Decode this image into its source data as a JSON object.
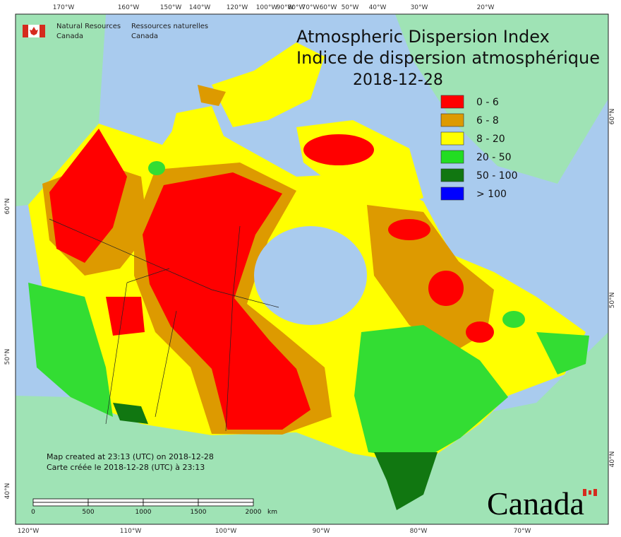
{
  "agency": {
    "en_line1": "Natural Resources",
    "en_line2": "Canada",
    "fr_line1": "Ressources naturelles",
    "fr_line2": "Canada"
  },
  "title": {
    "en": "Atmospheric Dispersion Index",
    "fr": "Indice de dispersion atmosphérique",
    "date": "2018-12-28"
  },
  "legend": [
    {
      "label": "0 - 6",
      "color": "#ff0000"
    },
    {
      "label": "6 - 8",
      "color": "#dd9a00"
    },
    {
      "label": "8 - 20",
      "color": "#ffff00"
    },
    {
      "label": "20 - 50",
      "color": "#22dd22"
    },
    {
      "label": "50 - 100",
      "color": "#117711"
    },
    {
      "label": "> 100",
      "color": "#0000ff"
    }
  ],
  "graticule": {
    "top": [
      "170°W",
      "160°W",
      "150°W",
      "140°W",
      "120°W",
      "100°W",
      "90°W",
      "80°W",
      "70°W",
      "60°W",
      "50°W",
      "40°W",
      "30°W",
      "20°W"
    ],
    "bottom": [
      "120°W",
      "110°W",
      "100°W",
      "90°W",
      "80°W",
      "70°W"
    ],
    "left": [
      "60°N",
      "50°N",
      "40°N"
    ],
    "right": [
      "60°N",
      "50°N",
      "40°N"
    ]
  },
  "notes": {
    "created_en": "Map created at 23:13 (UTC) on 2018-12-28",
    "created_fr": "Carte créée le 2018-12-28 (UTC) à 23:13"
  },
  "scale_bar": {
    "labels": [
      "0",
      "500",
      "1000",
      "1500",
      "2000"
    ],
    "unit": "km"
  },
  "wordmark": "Canada"
}
